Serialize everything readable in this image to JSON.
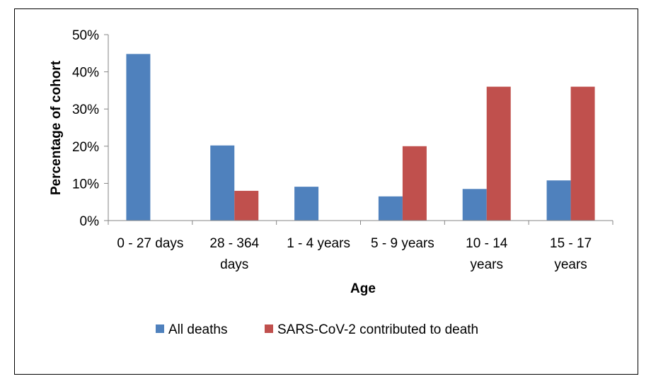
{
  "chart_data": {
    "type": "bar",
    "title": "",
    "xlabel": "Age",
    "ylabel": "Percentage of cohort",
    "ylim": [
      0,
      50
    ],
    "yticks": [
      "0%",
      "10%",
      "20%",
      "30%",
      "40%",
      "50%"
    ],
    "categories": [
      [
        "0 - 27 days"
      ],
      [
        "28 - 364",
        "days"
      ],
      [
        "1 - 4 years"
      ],
      [
        "5 - 9 years"
      ],
      [
        "10 - 14",
        "years"
      ],
      [
        "15 - 17",
        "years"
      ]
    ],
    "series": [
      {
        "name": "All deaths",
        "color": "#4F81BD",
        "values": [
          44.8,
          20.2,
          9.1,
          6.5,
          8.5,
          10.8
        ]
      },
      {
        "name": "SARS-CoV-2 contributed to death",
        "color": "#C0504D",
        "values": [
          0,
          8.0,
          0,
          20.0,
          36.0,
          36.0
        ]
      }
    ],
    "legend_position": "bottom",
    "grid": false
  }
}
